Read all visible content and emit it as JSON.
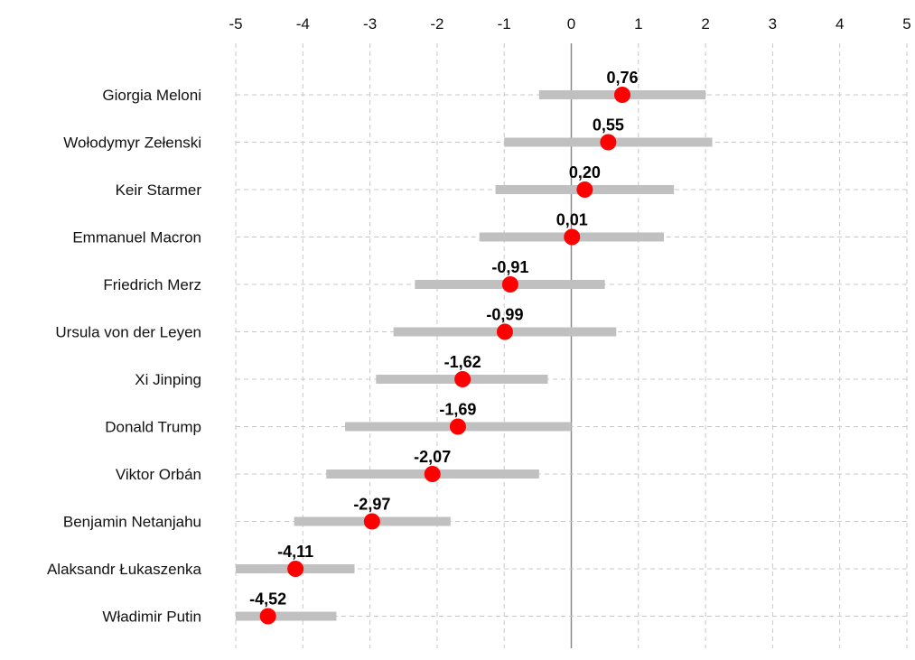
{
  "chart_data": {
    "type": "dot-range",
    "title": "",
    "xlabel": "",
    "ylabel": "",
    "xlim": [
      -5,
      5
    ],
    "x_ticks": [
      -5,
      -4,
      -3,
      -2,
      -1,
      0,
      1,
      2,
      3,
      4,
      5
    ],
    "x_tick_labels": [
      "-5",
      "-4",
      "-3",
      "-2",
      "-1",
      "0",
      "1",
      "2",
      "3",
      "4",
      "5"
    ],
    "x_axis_position": "top",
    "grid": true,
    "categories": [
      "Giorgia Meloni",
      "Wołodymyr Zełenski",
      "Keir Starmer",
      "Emmanuel Macron",
      "Friedrich Merz",
      "Ursula von der Leyen",
      "Xi Jinping",
      "Donald Trump",
      "Viktor Orbán",
      "Benjamin Netanjahu",
      "Alaksandr Łukaszenka",
      "Władimir Putin"
    ],
    "values": [
      0.76,
      0.55,
      0.2,
      0.01,
      -0.91,
      -0.99,
      -1.62,
      -1.69,
      -2.07,
      -2.97,
      -4.11,
      -4.52
    ],
    "value_labels": [
      "0,76",
      "0,55",
      "0,20",
      "0,01",
      "-0,91",
      "-0,99",
      "-1,62",
      "-1,69",
      "-2,07",
      "-2,97",
      "-4,11",
      "-4,52"
    ],
    "range_low": [
      -0.48,
      -1.0,
      -1.13,
      -1.37,
      -2.33,
      -2.65,
      -2.91,
      -3.37,
      -3.65,
      -4.13,
      -5.0,
      -5.0
    ],
    "range_high": [
      2.0,
      2.1,
      1.53,
      1.38,
      0.5,
      0.67,
      -0.35,
      0.0,
      -0.48,
      -1.8,
      -3.23,
      -3.5
    ],
    "colors": {
      "dot": "#ff0000",
      "range": "#c0c0c0",
      "grid": "#c8c8c8",
      "zero_line": "#8a8a8a"
    }
  }
}
